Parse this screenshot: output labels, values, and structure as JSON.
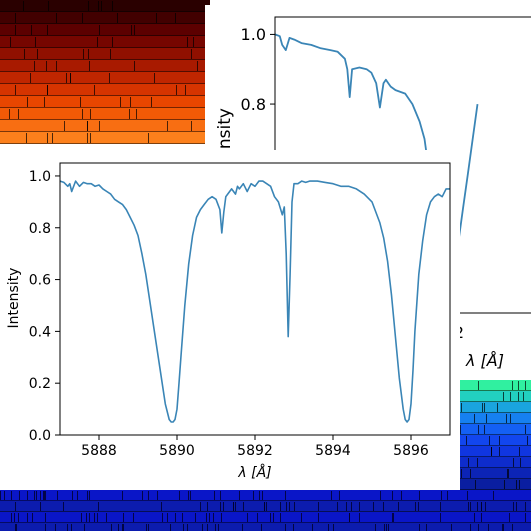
{
  "chart_data": [
    {
      "type": "line",
      "xlabel": "λ [Å]",
      "ylabel": "Intensity",
      "xlim": [
        6555.0,
        6566.2
      ],
      "ylim": [
        0.2,
        1.05
      ],
      "xticks": [
        6562
      ],
      "yticks": [
        0.8,
        1.0
      ],
      "ytick_labels": [
        "0.8",
        "1.0"
      ],
      "color": "#3a85b6",
      "grid": false,
      "series": [
        {
          "x": [
            6555.0,
            6555.2,
            6555.3,
            6555.45,
            6555.6,
            6555.8,
            6556.1,
            6556.5,
            6556.9,
            6557.3,
            6557.6,
            6557.9,
            6558.0,
            6558.1,
            6558.2,
            6558.5,
            6558.8,
            6559.0,
            6559.2,
            6559.35,
            6559.5,
            6559.6,
            6559.7,
            6559.8,
            6560.0,
            6560.4,
            6560.7,
            6561.0,
            6561.2,
            6561.4,
            6561.6,
            6561.8,
            6562.0,
            6562.2,
            6562.4,
            6562.6,
            6562.8,
            6563.0,
            6563.2,
            6563.4
          ],
          "y": [
            1.0,
            0.995,
            0.97,
            0.955,
            0.99,
            0.985,
            0.975,
            0.97,
            0.96,
            0.955,
            0.95,
            0.93,
            0.9,
            0.82,
            0.9,
            0.905,
            0.9,
            0.89,
            0.86,
            0.79,
            0.86,
            0.87,
            0.86,
            0.85,
            0.84,
            0.83,
            0.8,
            0.75,
            0.7,
            0.6,
            0.5,
            0.4,
            0.33,
            0.3,
            0.33,
            0.4,
            0.5,
            0.6,
            0.7,
            0.8
          ]
        }
      ]
    },
    {
      "type": "line",
      "xlabel": "λ [Å]",
      "ylabel": "Intensity",
      "xlim": [
        5887,
        5897
      ],
      "ylim": [
        0.0,
        1.05
      ],
      "xticks": [
        5888,
        5890,
        5892,
        5894,
        5896
      ],
      "xtick_labels": [
        "5888",
        "5890",
        "5892",
        "5894",
        "5896"
      ],
      "yticks": [
        0.0,
        0.2,
        0.4,
        0.6,
        0.8,
        1.0
      ],
      "ytick_labels": [
        "0.0",
        "0.2",
        "0.4",
        "0.6",
        "0.8",
        "1.0"
      ],
      "color": "#3a85b6",
      "grid": false,
      "series": [
        {
          "x": [
            5887.0,
            5887.1,
            5887.2,
            5887.25,
            5887.3,
            5887.4,
            5887.5,
            5887.6,
            5887.7,
            5887.8,
            5887.9,
            5888.0,
            5888.1,
            5888.2,
            5888.3,
            5888.4,
            5888.5,
            5888.6,
            5888.7,
            5888.8,
            5888.9,
            5889.0,
            5889.1,
            5889.2,
            5889.3,
            5889.4,
            5889.5,
            5889.6,
            5889.7,
            5889.8,
            5889.85,
            5889.9,
            5889.95,
            5890.0,
            5890.05,
            5890.1,
            5890.2,
            5890.3,
            5890.4,
            5890.5,
            5890.6,
            5890.7,
            5890.8,
            5890.9,
            5891.0,
            5891.1,
            5891.15,
            5891.2,
            5891.25,
            5891.3,
            5891.4,
            5891.5,
            5891.55,
            5891.6,
            5891.7,
            5891.8,
            5891.9,
            5892.0,
            5892.1,
            5892.2,
            5892.3,
            5892.4,
            5892.5,
            5892.6,
            5892.7,
            5892.75,
            5892.8,
            5892.85,
            5892.9,
            5892.95,
            5893.0,
            5893.1,
            5893.2,
            5893.3,
            5893.4,
            5893.6,
            5893.8,
            5894.0,
            5894.2,
            5894.4,
            5894.6,
            5894.8,
            5895.0,
            5895.2,
            5895.3,
            5895.4,
            5895.5,
            5895.6,
            5895.7,
            5895.8,
            5895.85,
            5895.9,
            5895.95,
            5896.0,
            5896.05,
            5896.1,
            5896.2,
            5896.3,
            5896.4,
            5896.5,
            5896.6,
            5896.7,
            5896.8,
            5896.9,
            5897.0
          ],
          "y": [
            0.98,
            0.975,
            0.96,
            0.97,
            0.94,
            0.98,
            0.96,
            0.975,
            0.97,
            0.97,
            0.96,
            0.965,
            0.95,
            0.94,
            0.93,
            0.91,
            0.9,
            0.89,
            0.87,
            0.84,
            0.81,
            0.77,
            0.7,
            0.62,
            0.52,
            0.42,
            0.32,
            0.22,
            0.12,
            0.06,
            0.05,
            0.05,
            0.06,
            0.1,
            0.2,
            0.3,
            0.5,
            0.66,
            0.77,
            0.84,
            0.87,
            0.89,
            0.91,
            0.92,
            0.91,
            0.87,
            0.78,
            0.86,
            0.92,
            0.93,
            0.95,
            0.93,
            0.96,
            0.95,
            0.97,
            0.94,
            0.97,
            0.96,
            0.98,
            0.98,
            0.97,
            0.96,
            0.92,
            0.9,
            0.85,
            0.88,
            0.7,
            0.38,
            0.62,
            0.9,
            0.97,
            0.97,
            0.98,
            0.975,
            0.98,
            0.98,
            0.975,
            0.97,
            0.96,
            0.96,
            0.95,
            0.93,
            0.9,
            0.82,
            0.76,
            0.67,
            0.54,
            0.38,
            0.22,
            0.1,
            0.06,
            0.05,
            0.06,
            0.12,
            0.25,
            0.4,
            0.62,
            0.75,
            0.85,
            0.9,
            0.92,
            0.93,
            0.92,
            0.95,
            0.95
          ]
        }
      ]
    }
  ]
}
